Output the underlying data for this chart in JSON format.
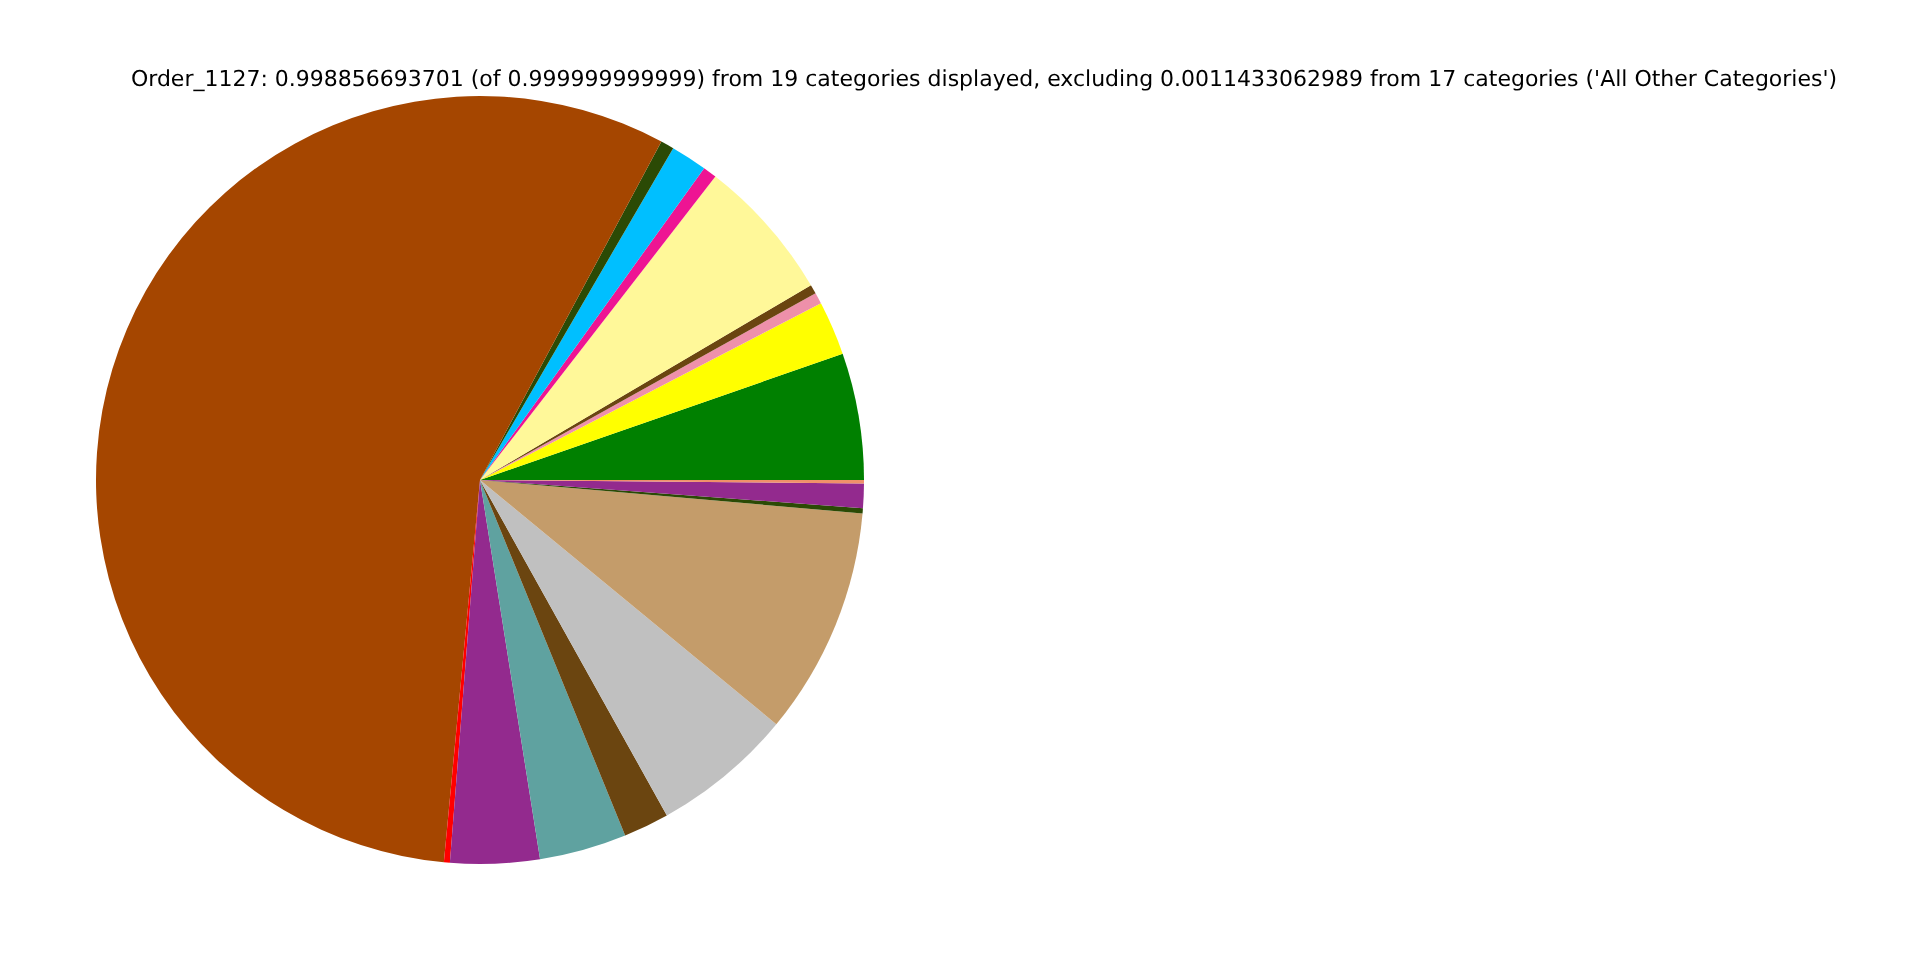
{
  "chart_data": {
    "type": "pie",
    "title": "Order_1127: 0.998856693701 (of 0.999999999999) from 19 categories displayed, excluding 0.0011433062989 from 17 categories ('All Other Categories')",
    "categories": [
      null,
      null,
      null,
      null,
      null,
      null,
      null,
      null,
      null,
      null,
      null,
      null,
      null,
      null,
      null,
      null,
      null,
      null
    ],
    "values": [
      5.33,
      2.28,
      0.47,
      0.39,
      6.03,
      0.58,
      1.53,
      0.56,
      56.33,
      0.25,
      3.75,
      3.67,
      1.92,
      5.94,
      9.58,
      0.22,
      1.03,
      0.14
    ],
    "colors": [
      "#008000",
      "#ffff00",
      "#ee90aa",
      "#6b4510",
      "#fff899",
      "#ee1493",
      "#00bfff",
      "#2b4a05",
      "#a54600",
      "#ff0000",
      "#932a8e",
      "#5fa2a0",
      "#6b4510",
      "#c0c0c0",
      "#c49c6a",
      "#2b4a05",
      "#932a8e",
      "#f0906a"
    ]
  }
}
